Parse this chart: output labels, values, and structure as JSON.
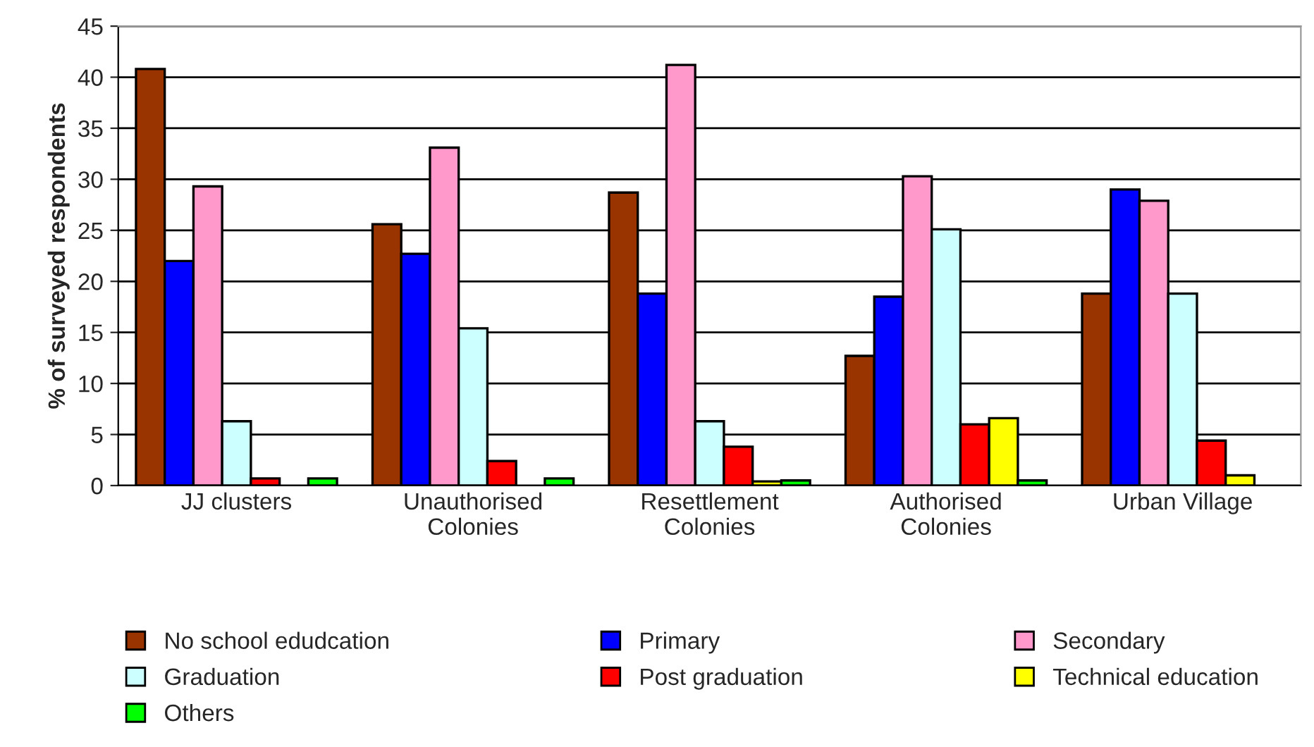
{
  "chart_data": {
    "type": "bar",
    "ylabel": "% of surveyed respondents",
    "categories": [
      "JJ clusters",
      "Unauthorised\nColonies",
      "Resettlement\nColonies",
      "Authorised\nColonies",
      "Urban Village"
    ],
    "series": [
      {
        "name": "No school edudcation",
        "color": "#993300",
        "values": [
          40.8,
          25.6,
          28.7,
          12.7,
          18.8
        ]
      },
      {
        "name": "Primary",
        "color": "#0000ff",
        "values": [
          22.0,
          22.7,
          18.8,
          18.5,
          29.0
        ]
      },
      {
        "name": "Secondary",
        "color": "#ff99cc",
        "values": [
          29.3,
          33.1,
          41.2,
          30.3,
          27.9
        ]
      },
      {
        "name": "Graduation",
        "color": "#ccffff",
        "values": [
          6.3,
          15.4,
          6.3,
          25.1,
          18.8
        ]
      },
      {
        "name": "Post graduation",
        "color": "#ff0000",
        "values": [
          0.7,
          2.4,
          3.8,
          6.0,
          4.4
        ]
      },
      {
        "name": "Technical education",
        "color": "#ffff00",
        "values": [
          null,
          null,
          0.4,
          6.6,
          1.0
        ]
      },
      {
        "name": "Others",
        "color": "#00ff00",
        "values": [
          0.7,
          0.7,
          0.5,
          0.5,
          null
        ]
      }
    ],
    "ylim": [
      0,
      45
    ],
    "yticks": [
      0,
      5,
      10,
      15,
      20,
      25,
      30,
      35,
      40,
      45
    ],
    "grid": "y",
    "legend": "bottom"
  }
}
